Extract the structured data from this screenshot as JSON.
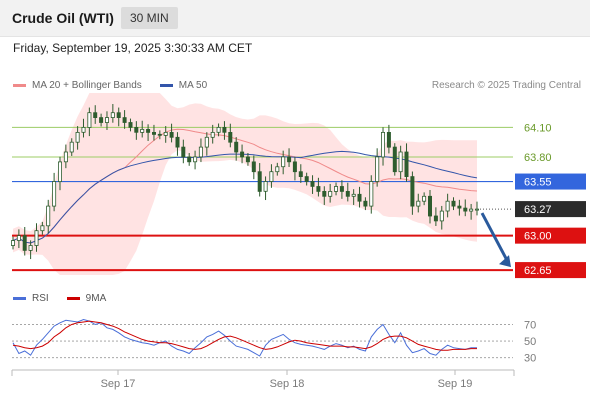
{
  "header": {
    "instrument": "Crude Oil (WTI)",
    "timeframe": "30 MIN",
    "timestamp": "Friday, September 19, 2025 3:30:33 AM CET",
    "credit": "Research © 2025 Trading Central"
  },
  "legend": {
    "ma20": "MA 20 + Bollinger Bands",
    "ma50": "MA 50",
    "rsi": "RSI",
    "ma9": "9MA"
  },
  "colors": {
    "candle": "#2e5c2e",
    "bollinger_fill": "#ffdede",
    "ma20": "#f08a8a",
    "ma50": "#3355aa",
    "support": "#dd1111",
    "resistance_green": "#9ccc65",
    "pivot_blue": "#3366dd",
    "dotted": "#555555",
    "rsi": "#4a6fd8",
    "rsi_ma": "#cc0000",
    "arrow": "#2a5a9c"
  },
  "chart_data": {
    "type": "candlestick",
    "ylim": [
      62.6,
      64.45
    ],
    "x_ticks": [
      "Sep 17",
      "Sep 18",
      "Sep 19"
    ],
    "levels": [
      {
        "label": "64.10",
        "value": 64.1,
        "style": "resistance"
      },
      {
        "label": "63.80",
        "value": 63.8,
        "style": "resistance"
      },
      {
        "label": "63.55",
        "value": 63.55,
        "style": "pivot"
      },
      {
        "label": "63.27",
        "value": 63.27,
        "style": "last"
      },
      {
        "label": "63.00",
        "value": 63.0,
        "style": "support"
      },
      {
        "label": "62.65",
        "value": 62.65,
        "style": "support"
      }
    ],
    "forecast_arrow": {
      "from": 63.27,
      "to": 62.7
    },
    "close": [
      62.95,
      63.0,
      62.85,
      62.9,
      63.05,
      63.1,
      63.3,
      63.55,
      63.75,
      63.85,
      63.95,
      64.05,
      64.1,
      64.25,
      64.2,
      64.15,
      64.2,
      64.25,
      64.2,
      64.15,
      64.1,
      64.05,
      64.08,
      64.05,
      64.03,
      64.02,
      64.05,
      64.0,
      63.9,
      63.8,
      63.75,
      63.8,
      63.9,
      64.0,
      64.05,
      64.1,
      64.05,
      63.95,
      63.85,
      63.8,
      63.75,
      63.65,
      63.45,
      63.55,
      63.65,
      63.7,
      63.8,
      63.75,
      63.65,
      63.6,
      63.55,
      63.5,
      63.45,
      63.4,
      63.45,
      63.5,
      63.45,
      63.4,
      63.42,
      63.35,
      63.3,
      63.55,
      63.8,
      64.05,
      63.9,
      63.65,
      63.85,
      63.6,
      63.3,
      63.35,
      63.4,
      63.2,
      63.15,
      63.25,
      63.35,
      63.3,
      63.28,
      63.25,
      63.27,
      63.27
    ],
    "rsi": {
      "ticks": [
        70,
        50,
        30
      ],
      "ylim": [
        20,
        85
      ],
      "values": [
        48,
        35,
        38,
        33,
        45,
        52,
        60,
        68,
        72,
        75,
        74,
        73,
        76,
        74,
        70,
        72,
        66,
        64,
        60,
        55,
        52,
        50,
        48,
        47,
        45,
        48,
        50,
        44,
        40,
        38,
        35,
        42,
        48,
        55,
        58,
        62,
        57,
        50,
        44,
        42,
        40,
        36,
        32,
        45,
        52,
        55,
        58,
        52,
        48,
        46,
        45,
        44,
        42,
        40,
        44,
        47,
        45,
        42,
        44,
        40,
        38,
        55,
        64,
        70,
        58,
        48,
        60,
        45,
        36,
        38,
        41,
        35,
        33,
        40,
        45,
        42,
        41,
        40,
        42,
        42
      ],
      "ma_values": [
        45,
        44,
        42,
        41,
        42,
        44,
        48,
        55,
        60,
        66,
        70,
        72,
        73,
        74,
        73,
        72,
        70,
        68,
        65,
        61,
        58,
        55,
        52,
        50,
        49,
        48,
        48,
        47,
        45,
        43,
        41,
        40,
        41,
        44,
        48,
        52,
        55,
        56,
        54,
        51,
        48,
        45,
        42,
        40,
        41,
        43,
        46,
        49,
        51,
        50,
        48,
        47,
        46,
        45,
        44,
        44,
        44,
        43,
        43,
        42,
        41,
        43,
        47,
        52,
        55,
        56,
        56,
        54,
        50,
        46,
        44,
        42,
        40,
        39,
        39,
        40,
        40,
        40,
        41,
        41
      ]
    }
  }
}
